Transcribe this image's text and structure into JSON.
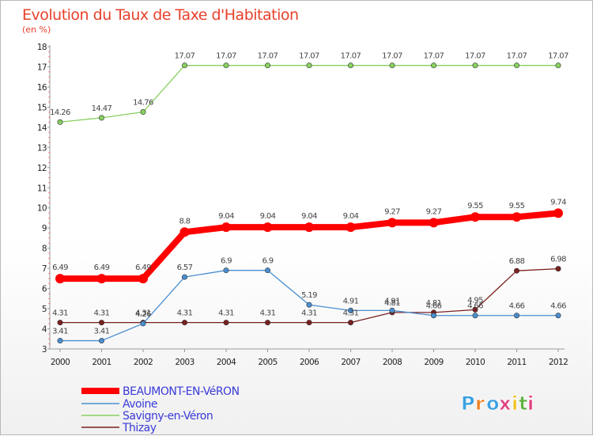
{
  "chart_data": {
    "type": "line",
    "title": "Evolution du Taux de Taxe d'Habitation",
    "subtitle": "(en %)",
    "xlabel": "",
    "ylabel": "",
    "x": [
      "2000",
      "2001",
      "2002",
      "2003",
      "2004",
      "2005",
      "2006",
      "2007",
      "2008",
      "2009",
      "2010",
      "2011",
      "2012"
    ],
    "ylim": [
      3,
      18
    ],
    "yticks": [
      3,
      4,
      5,
      6,
      7,
      8,
      9,
      10,
      11,
      12,
      13,
      14,
      15,
      16,
      17,
      18
    ],
    "grid": false,
    "legend_position": "bottom-left",
    "series": [
      {
        "name": "BEAUMONT-EN-VéRON",
        "color": "#ff0000",
        "values": [
          6.49,
          6.49,
          6.49,
          8.8,
          9.04,
          9.04,
          9.04,
          9.04,
          9.27,
          9.27,
          9.55,
          9.55,
          9.74
        ],
        "labels": [
          "6.49",
          "6.49",
          "6.49",
          "8.8",
          "9.04",
          "9.04",
          "9.04",
          "9.04",
          "9.27",
          "9.27",
          "9.55",
          "9.55",
          "9.74"
        ]
      },
      {
        "name": "Avoine",
        "color": "#4a8fd0",
        "values": [
          3.41,
          3.41,
          4.26,
          6.57,
          6.9,
          6.9,
          5.19,
          4.91,
          4.91,
          4.66,
          4.66,
          4.66,
          4.66
        ],
        "labels": [
          "3.41",
          "3.41",
          "4.26",
          "6.57",
          "6.9",
          "6.9",
          "5.19",
          "4.91",
          "4.91",
          "4.66",
          "4.66",
          "4.66",
          "4.66"
        ]
      },
      {
        "name": "Savigny-en-Véron",
        "color": "#88d060",
        "values": [
          14.26,
          14.47,
          14.76,
          17.07,
          17.07,
          17.07,
          17.07,
          17.07,
          17.07,
          17.07,
          17.07,
          17.07,
          17.07
        ],
        "labels": [
          "14.26",
          "14.47",
          "14.76",
          "17.07",
          "17.07",
          "17.07",
          "17.07",
          "17.07",
          "17.07",
          "17.07",
          "17.07",
          "17.07",
          "17.07"
        ]
      },
      {
        "name": "Thizay",
        "color": "#7a2020",
        "values": [
          4.31,
          4.31,
          4.31,
          4.31,
          4.31,
          4.31,
          4.31,
          4.31,
          4.81,
          4.81,
          4.95,
          6.88,
          6.98
        ],
        "labels": [
          "4.31",
          "4.31",
          "4.31",
          "4.31",
          "4.31",
          "4.31",
          "4.31",
          "4.31",
          "4.81",
          "4.81",
          "4.95",
          "6.88",
          "6.98"
        ]
      }
    ]
  },
  "logo": {
    "letters": [
      "P",
      "r",
      "o",
      "x",
      "i",
      "t",
      "i"
    ],
    "colors": [
      "#3aa0e0",
      "#f08020",
      "#3aa0e0",
      "#e04080",
      "#f0c020",
      "#60b040",
      "#e04080"
    ]
  }
}
